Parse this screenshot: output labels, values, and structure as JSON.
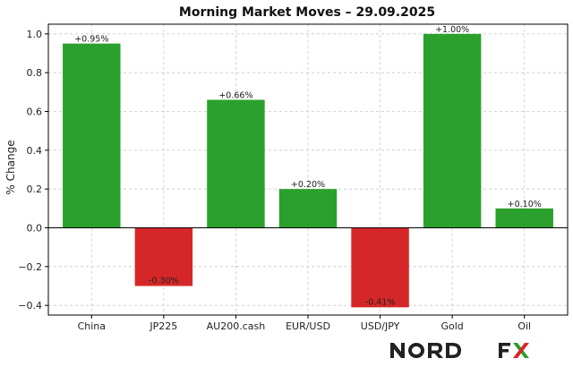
{
  "chart_data": {
    "type": "bar",
    "title": "Morning Market Moves – 29.09.2025",
    "xlabel": "",
    "ylabel": "% Change",
    "categories": [
      "China",
      "JP225",
      "AU200.cash",
      "EUR/USD",
      "USD/JPY",
      "Gold",
      "Oil"
    ],
    "values": [
      0.95,
      -0.3,
      0.66,
      0.2,
      -0.41,
      1.0,
      0.1
    ],
    "data_labels": [
      "+0.95%",
      "-0.30%",
      "+0.66%",
      "+0.20%",
      "-0.41%",
      "+1.00%",
      "+0.10%"
    ],
    "ylim": [
      -0.45,
      1.05
    ],
    "yticks": [
      -0.4,
      -0.2,
      0.0,
      0.2,
      0.4,
      0.6,
      0.8,
      1.0
    ],
    "ytick_labels": [
      "−0.4",
      "−0.2",
      "0.0",
      "0.2",
      "0.4",
      "0.6",
      "0.8",
      "1.0"
    ],
    "grid": true,
    "colors": {
      "positive": "#2ca02c",
      "negative": "#d62728",
      "zero_line": "#000000",
      "grid": "#c8c8c8"
    }
  },
  "branding": {
    "logo_text": "NORD FX",
    "logo_colors": {
      "text": "#222222",
      "x_green": "#2ca02c",
      "x_red": "#d62728"
    }
  }
}
